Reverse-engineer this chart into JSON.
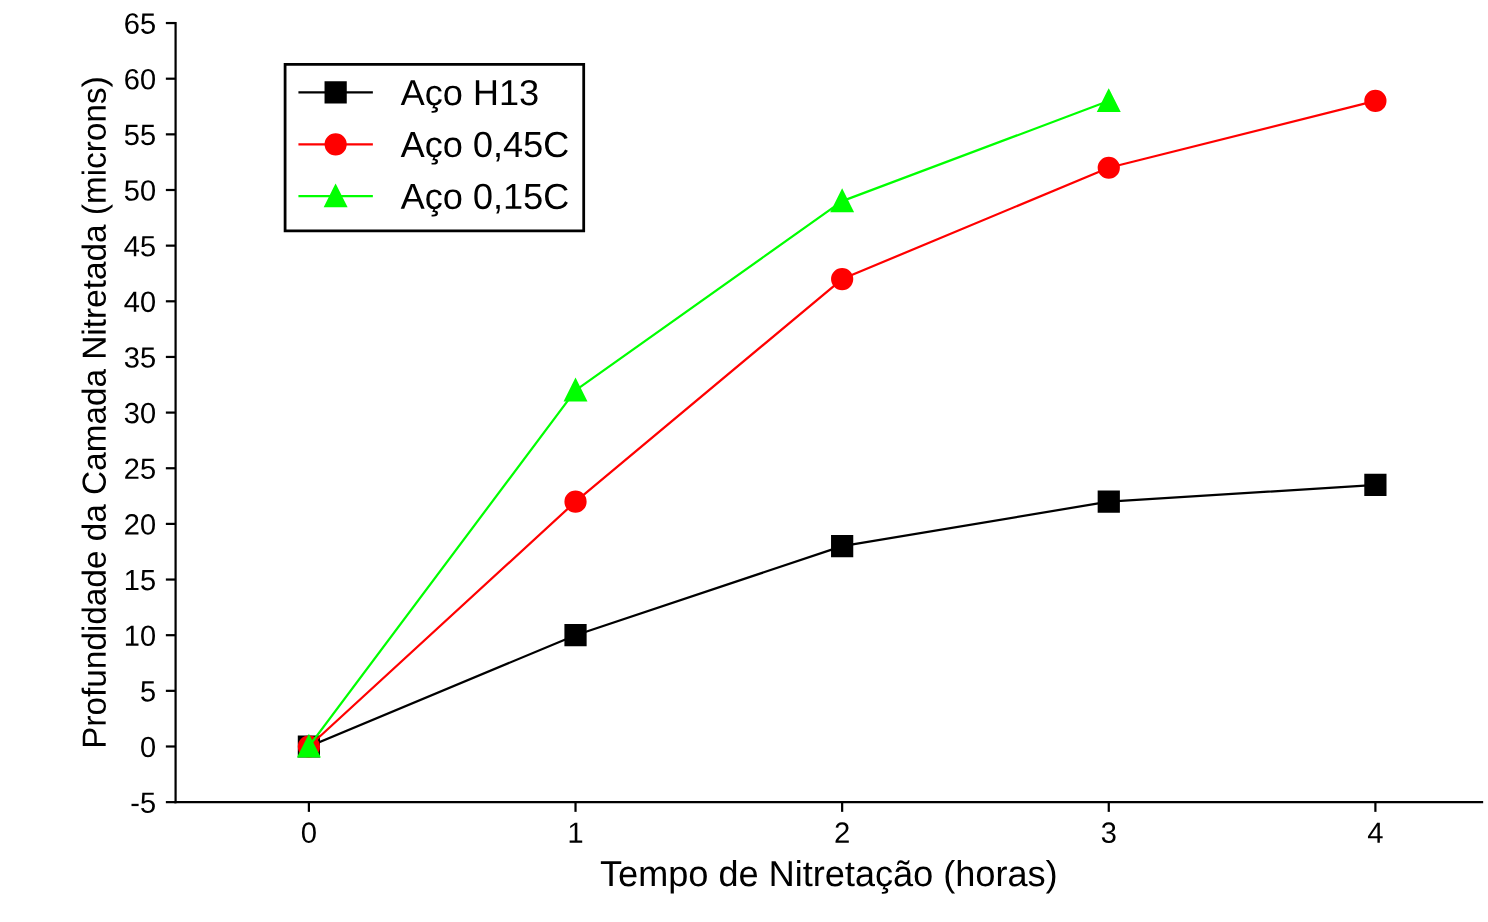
{
  "chart_data": {
    "type": "line",
    "xlabel": "Tempo de Nitretação (horas)",
    "ylabel": "Profundidade da Camada Nitretada (microns)",
    "x": [
      0,
      1,
      2,
      3,
      4
    ],
    "series": [
      {
        "name": "Aço H13",
        "color": "#000000",
        "marker": "square",
        "values": [
          0,
          10,
          18,
          22,
          23.5
        ]
      },
      {
        "name": "Aço 0,45C",
        "color": "#ff0000",
        "marker": "circle",
        "values": [
          0,
          22,
          42,
          52,
          58
        ]
      },
      {
        "name": "Aço 0,15C",
        "color": "#00ff00",
        "marker": "triangle",
        "values": [
          0,
          32,
          49,
          58,
          null
        ]
      }
    ],
    "xlim": [
      -0.5,
      4.4
    ],
    "xticks": [
      0,
      1,
      2,
      3,
      4
    ],
    "ylim": [
      -5,
      65
    ],
    "yticks": [
      -5,
      0,
      5,
      10,
      15,
      20,
      25,
      30,
      35,
      40,
      45,
      50,
      55,
      60,
      65
    ],
    "grid": false,
    "legend": "top left",
    "line_style": "solid"
  }
}
